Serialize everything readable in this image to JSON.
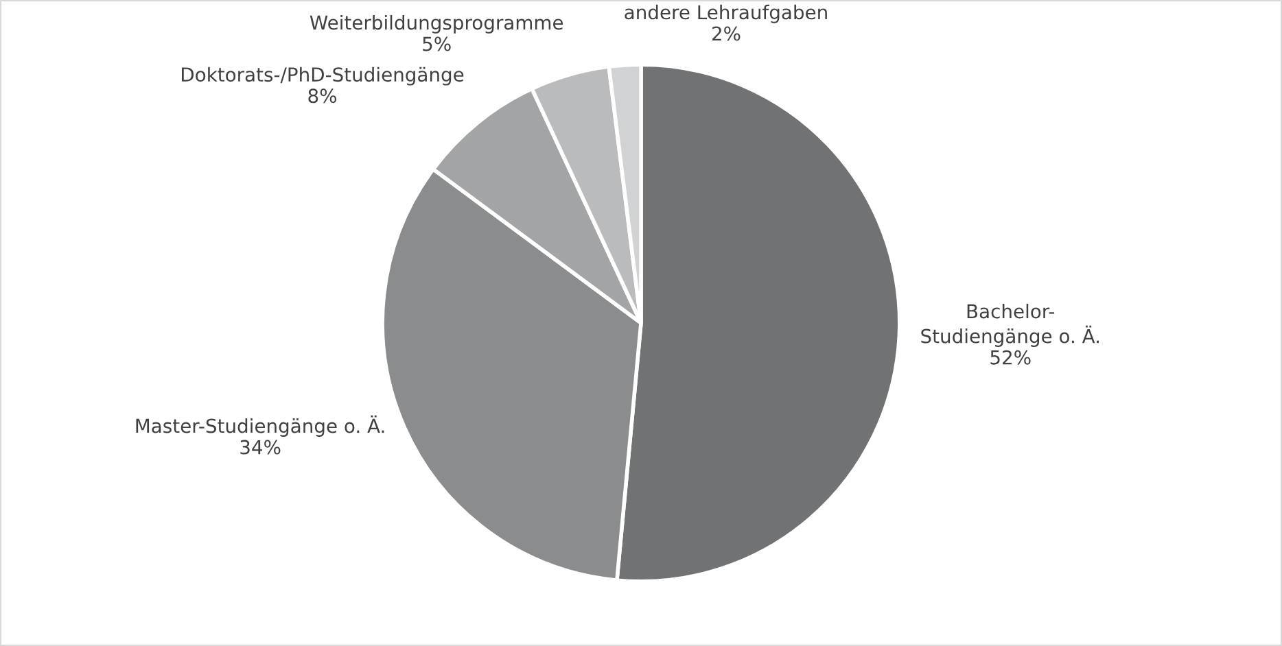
{
  "chart_data": {
    "type": "pie",
    "categories": [
      "Bachelor-\nStudiengänge o. Ä.",
      "Master-Studiengänge o. Ä.",
      "Doktorats-/PhD-Studiengänge",
      "Weiterbildungsprogramme",
      "andere Lehraufgaben"
    ],
    "values": [
      52,
      34,
      8,
      5,
      2
    ],
    "value_labels": [
      "52%",
      "34%",
      "8%",
      "5%",
      "2%"
    ],
    "colors": [
      "#707274",
      "#8a8c8e",
      "#a2a4a6",
      "#b9bbbd",
      "#d0d2d4"
    ],
    "legend": false
  }
}
